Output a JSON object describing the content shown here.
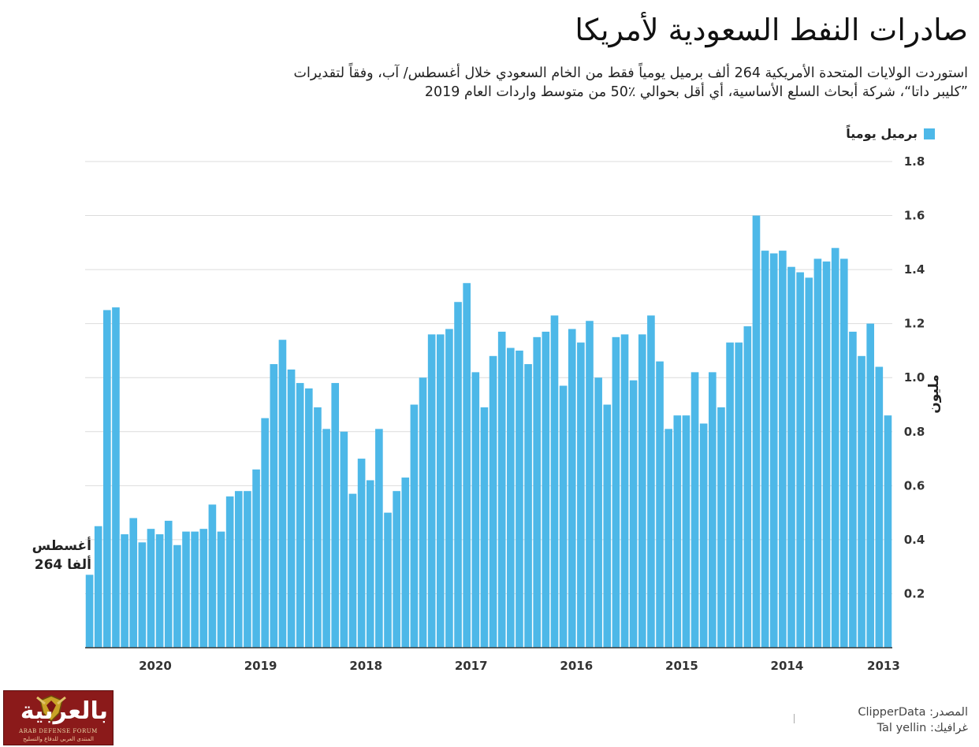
{
  "header": {
    "title": "صادرات النفط السعودية لأمريكا",
    "subtitle_line1": "استوردت الولايات المتحدة الأمريكية 264 ألف برميل يومياً فقط من الخام السعودي خلال أغسطس/ آب، وفقاً لتقديرات",
    "subtitle_line2": "”كليبر داتا“، شركة أبحاث السلع الأساسية، أي أقل بحوالي ٪50 من متوسط واردات العام 2019"
  },
  "legend": {
    "label": "برميل يومياً",
    "color": "#4db8e8"
  },
  "annotation": {
    "line1": "أغسطس",
    "line2": "264 ألفا"
  },
  "footer": {
    "source": "المصدر: ClipperData",
    "graphic": "غرافيك: Tal yellin"
  },
  "logo": {
    "text": "بالعربية",
    "sub_en": "ARAB DEFENSE FORUM",
    "sub_ar": "المنتدى العربي للدفاع والتسليح"
  },
  "chart_data": {
    "type": "bar",
    "title": "صادرات النفط السعودية لأمريكا",
    "ylabel": "مليون",
    "xlabel": "",
    "ylim": [
      0,
      1.8
    ],
    "yticks": [
      0.2,
      0.4,
      0.6,
      0.8,
      1.0,
      1.2,
      1.4,
      1.6,
      1.8
    ],
    "ytick_labels": [
      "0.2",
      "0.4",
      "0.6",
      "0.8",
      "1.0",
      "1.2",
      "1.4",
      "1.6",
      "1.8"
    ],
    "grid": true,
    "order": "right-to-left, oldest month (2013) at right, August 2020 at left",
    "series": [
      {
        "name": "برميل يومياً",
        "color": "#4db8e8"
      }
    ],
    "year_labels": [
      "2013",
      "2014",
      "2015",
      "2016",
      "2017",
      "2018",
      "2019",
      "2020"
    ],
    "year_label_positions": [
      0.5,
      11.5,
      23.5,
      35.5,
      47.5,
      59.5,
      71.5,
      83.5
    ],
    "values": [
      0.86,
      1.04,
      1.2,
      1.08,
      1.17,
      1.44,
      1.48,
      1.43,
      1.44,
      1.37,
      1.39,
      1.41,
      1.47,
      1.46,
      1.47,
      1.6,
      1.19,
      1.13,
      1.13,
      0.89,
      1.02,
      0.83,
      1.02,
      0.86,
      0.86,
      0.81,
      1.06,
      1.23,
      1.16,
      0.99,
      1.16,
      1.15,
      0.9,
      1.0,
      1.21,
      1.13,
      1.18,
      0.97,
      1.23,
      1.17,
      1.15,
      1.05,
      1.1,
      1.11,
      1.17,
      1.08,
      0.89,
      1.02,
      1.35,
      1.28,
      1.18,
      1.16,
      1.16,
      1.0,
      0.9,
      0.63,
      0.58,
      0.5,
      0.81,
      0.62,
      0.7,
      0.57,
      0.8,
      0.98,
      0.81,
      0.89,
      0.96,
      0.98,
      1.03,
      1.14,
      1.05,
      0.85,
      0.66,
      0.58,
      0.58,
      0.56,
      0.43,
      0.53,
      0.44,
      0.43,
      0.43,
      0.38,
      0.47,
      0.42,
      0.44,
      0.39,
      0.48,
      0.42,
      1.26,
      1.25,
      0.45,
      0.27
    ]
  }
}
